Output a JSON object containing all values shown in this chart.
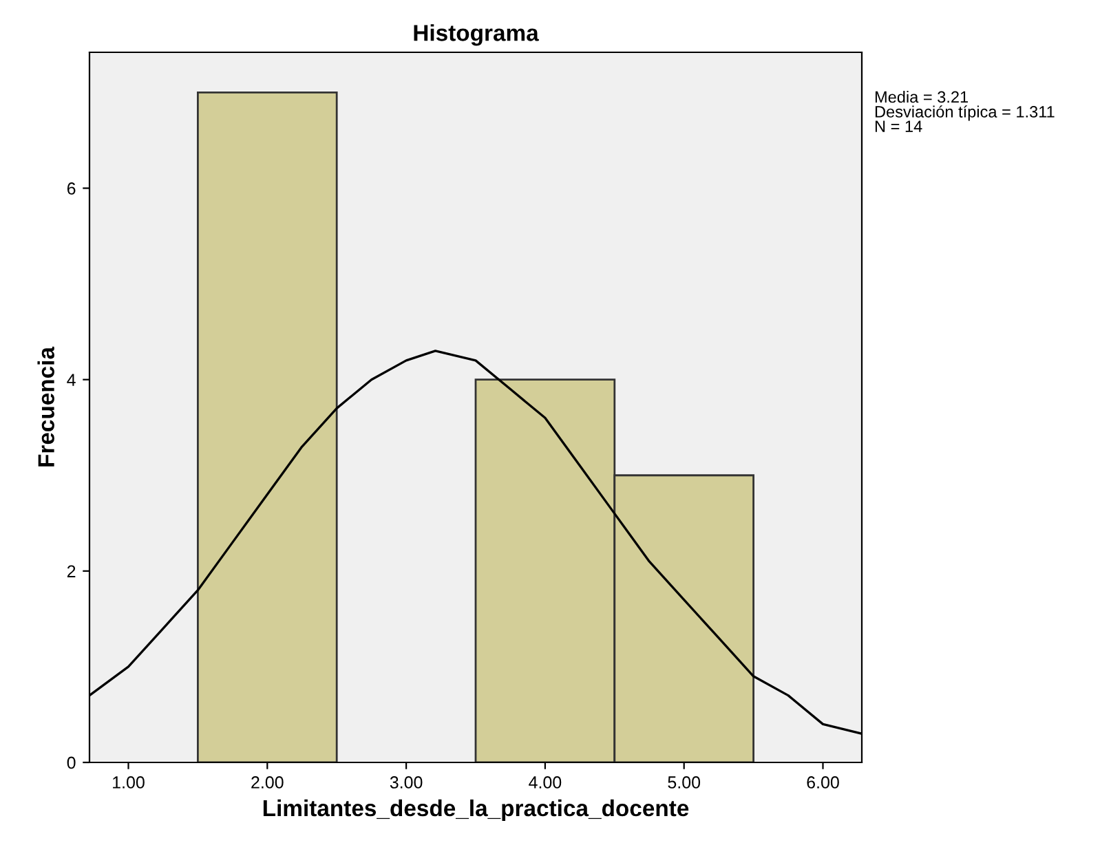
{
  "chart_data": {
    "type": "histogram",
    "title": "Histograma",
    "xlabel": "Limitantes_desde_la_practica_docente",
    "ylabel": "Frecuencia",
    "bins": [
      1.5,
      2.5,
      3.5,
      4.5,
      5.5
    ],
    "values": [
      7,
      0,
      4,
      3
    ],
    "color": "#d3ce98",
    "series": [
      {
        "type": "line",
        "color": "#000000",
        "x": [
          0.72,
          1.0,
          1.25,
          1.5,
          1.75,
          2.0,
          2.25,
          2.5,
          2.75,
          3.0,
          3.21,
          3.5,
          3.75,
          4.0,
          4.25,
          4.5,
          4.75,
          5.0,
          5.25,
          5.5,
          5.75,
          6.0,
          6.28
        ],
        "values": [
          0.7,
          1.0,
          1.4,
          1.8,
          2.3,
          2.8,
          3.3,
          3.7,
          4.0,
          4.2,
          4.3,
          4.2,
          3.9,
          3.6,
          3.1,
          2.6,
          2.1,
          1.7,
          1.3,
          0.9,
          0.7,
          0.4,
          0.3
        ]
      }
    ],
    "xlim": [
      0.72,
      6.28
    ],
    "ylim": [
      0,
      7.42
    ],
    "xticks": [
      {
        "value": 1,
        "label": "1.00"
      },
      {
        "value": 2,
        "label": "2.00"
      },
      {
        "value": 3,
        "label": "3.00"
      },
      {
        "value": 4,
        "label": "4.00"
      },
      {
        "value": 5,
        "label": "5.00"
      },
      {
        "value": 6,
        "label": "6.00"
      }
    ],
    "yticks": [
      0,
      2,
      4,
      6
    ],
    "annotations": [
      "Media = 3.21\nDesviación típica = 1.311\nN = 14"
    ],
    "grid": false
  }
}
